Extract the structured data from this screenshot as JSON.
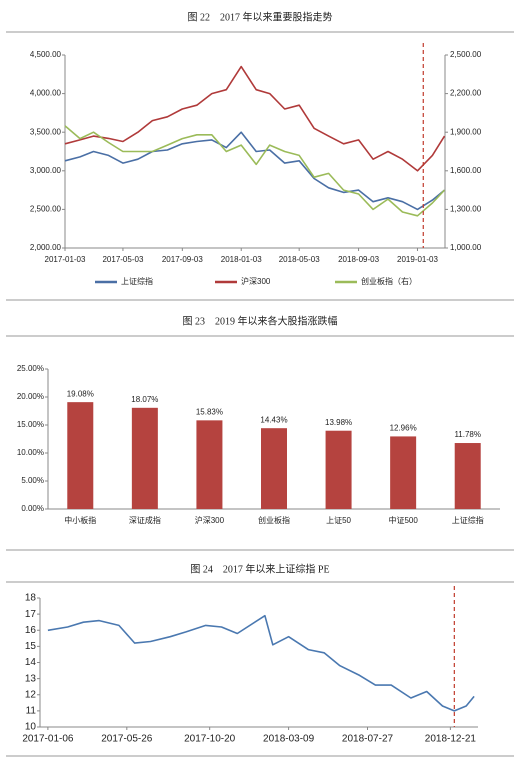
{
  "chart_data": [
    {
      "type": "line",
      "title": "图 22　2017 年以来重要股指走势",
      "x": [
        "2017-01-03",
        "2017-02-03",
        "2017-03-03",
        "2017-04-03",
        "2017-05-03",
        "2017-06-03",
        "2017-07-03",
        "2017-08-03",
        "2017-09-03",
        "2017-10-03",
        "2017-11-03",
        "2017-12-03",
        "2018-01-03",
        "2018-02-03",
        "2018-03-03",
        "2018-04-03",
        "2018-05-03",
        "2018-06-03",
        "2018-07-03",
        "2018-08-03",
        "2018-09-03",
        "2018-10-03",
        "2018-11-03",
        "2018-12-03",
        "2019-01-03",
        "2019-02-03",
        "2019-02-28"
      ],
      "series": [
        {
          "name": "上证综指",
          "color": "#4a6fa5",
          "values": [
            3130,
            3180,
            3250,
            3200,
            3100,
            3150,
            3250,
            3270,
            3350,
            3380,
            3400,
            3300,
            3500,
            3250,
            3270,
            3100,
            3130,
            2900,
            2780,
            2720,
            2750,
            2600,
            2650,
            2600,
            2500,
            2620,
            2750
          ]
        },
        {
          "name": "沪深300",
          "color": "#b03a3a",
          "values": [
            3350,
            3400,
            3450,
            3420,
            3380,
            3500,
            3650,
            3700,
            3800,
            3850,
            4000,
            4050,
            4350,
            4050,
            4000,
            3800,
            3850,
            3550,
            3450,
            3350,
            3400,
            3150,
            3250,
            3150,
            3000,
            3200,
            3450
          ]
        },
        {
          "name": "创业板指（右）",
          "color": "#9bbb59",
          "axis": "y2",
          "values": [
            1950,
            1850,
            1900,
            1820,
            1750,
            1750,
            1750,
            1800,
            1850,
            1880,
            1880,
            1750,
            1800,
            1650,
            1800,
            1750,
            1720,
            1550,
            1580,
            1450,
            1420,
            1300,
            1380,
            1280,
            1250,
            1350,
            1450
          ]
        }
      ],
      "xlim": [
        "2017-01-03",
        "2019-03-01"
      ],
      "xticks": [
        "2017-01-03",
        "2017-05-03",
        "2017-09-03",
        "2018-01-03",
        "2018-05-03",
        "2018-09-03",
        "2019-01-03"
      ],
      "ylim": [
        2000,
        4500
      ],
      "yticks": [
        {
          "value": 2000,
          "label": "2,000.00"
        },
        {
          "value": 2500,
          "label": "2,500.00"
        },
        {
          "value": 3000,
          "label": "3,000.00"
        },
        {
          "value": 3500,
          "label": "3,500.00"
        },
        {
          "value": 4000,
          "label": "4,000.00"
        },
        {
          "value": 4500,
          "label": "4,500.00"
        }
      ],
      "y2lim": [
        1000,
        2500
      ],
      "y2ticks": [
        {
          "value": 1000,
          "label": "1,000.00"
        },
        {
          "value": 1300,
          "label": "1,300.00"
        },
        {
          "value": 1600,
          "label": "1,600.00"
        },
        {
          "value": 1900,
          "label": "1,900.00"
        },
        {
          "value": 2200,
          "label": "2,200.00"
        },
        {
          "value": 2500,
          "label": "2,500.00"
        }
      ],
      "vline": "2019-01-15",
      "vline_color": "#c0392b",
      "legend": "bottom"
    },
    {
      "type": "bar",
      "title": "图 23　2019 年以来各大股指涨跌幅",
      "categories": [
        "中小板指",
        "深证成指",
        "沪深300",
        "创业板指",
        "上证50",
        "中证500",
        "上证综指"
      ],
      "values": [
        19.08,
        18.07,
        15.83,
        14.43,
        13.98,
        12.96,
        11.78
      ],
      "value_labels": [
        "19.08%",
        "18.07%",
        "15.83%",
        "14.43%",
        "13.98%",
        "12.96%",
        "11.78%"
      ],
      "color": "#b5433f",
      "ylim": [
        0,
        25
      ],
      "yticks": [
        {
          "value": 0,
          "label": "0.00%"
        },
        {
          "value": 5,
          "label": "5.00%"
        },
        {
          "value": 10,
          "label": "10.00%"
        },
        {
          "value": 15,
          "label": "15.00%"
        },
        {
          "value": 20,
          "label": "20.00%"
        },
        {
          "value": 25,
          "label": "25.00%"
        }
      ]
    },
    {
      "type": "line",
      "title": "图 24　2017 年以来上证综指 PE",
      "x": [
        "2017-01-06",
        "2017-02-10",
        "2017-03-10",
        "2017-04-07",
        "2017-05-12",
        "2017-06-09",
        "2017-07-07",
        "2017-08-11",
        "2017-09-08",
        "2017-10-13",
        "2017-11-10",
        "2017-12-08",
        "2018-01-26",
        "2018-02-09",
        "2018-03-09",
        "2018-04-13",
        "2018-05-11",
        "2018-06-08",
        "2018-07-13",
        "2018-08-10",
        "2018-09-07",
        "2018-10-12",
        "2018-11-09",
        "2018-12-07",
        "2018-12-28",
        "2019-01-18",
        "2019-02-01"
      ],
      "series": [
        {
          "name": "上证综指 PE",
          "color": "#4a78b0",
          "values": [
            16.0,
            16.2,
            16.5,
            16.6,
            16.3,
            15.2,
            15.3,
            15.6,
            15.9,
            16.3,
            16.2,
            15.8,
            16.9,
            15.1,
            15.6,
            14.8,
            14.6,
            13.8,
            13.2,
            12.6,
            12.6,
            11.8,
            12.2,
            11.3,
            11.0,
            11.3,
            11.9
          ]
        }
      ],
      "xlim": [
        "2016-12-23",
        "2019-02-08"
      ],
      "xticks": [
        "2017-01-06",
        "2017-05-26",
        "2017-10-20",
        "2018-03-09",
        "2018-07-27",
        "2018-12-21"
      ],
      "ylim": [
        10,
        18
      ],
      "yticks": [
        10,
        11,
        12,
        13,
        14,
        15,
        16,
        17,
        18
      ],
      "vline": "2018-12-28",
      "vline_color": "#c0392b"
    }
  ]
}
